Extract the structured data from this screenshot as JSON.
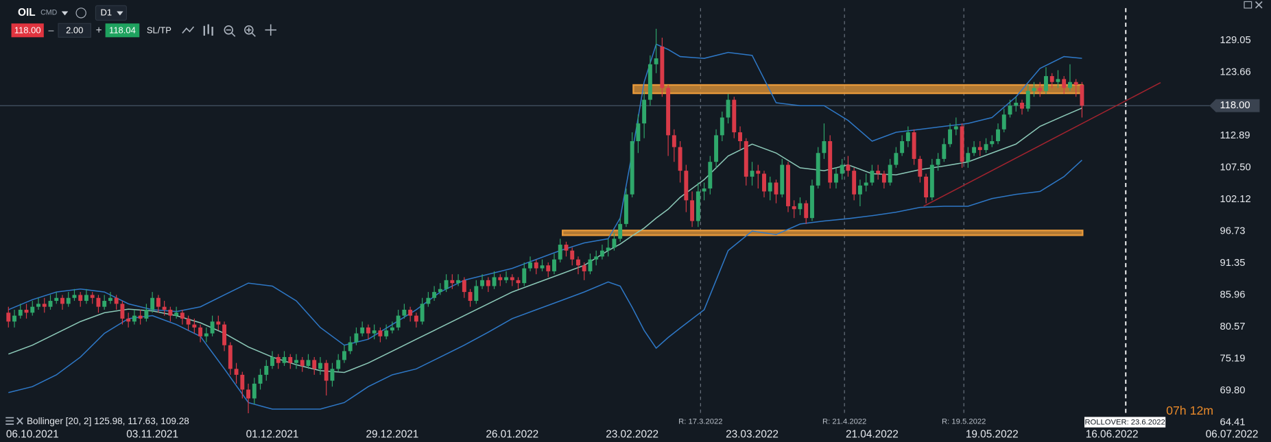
{
  "toolbar": {
    "symbol": "OIL",
    "market": "CMD",
    "timeframe": "D1",
    "sell": "118.00",
    "minus": "–",
    "volume": "2.00",
    "plus": "+",
    "buy": "118.04",
    "sltp": "SL/TP"
  },
  "chart_data": {
    "type": "candlestick",
    "up_color": "#2fa86b",
    "down_color": "#d93a48",
    "open": [
      83,
      81.5,
      82.5,
      83.5,
      83,
      84,
      84.5,
      84,
      85,
      85.5,
      84.5,
      85.5,
      86,
      85,
      86,
      85.5,
      84,
      85,
      85.5,
      84.5,
      82,
      81.5,
      82.5,
      82,
      83.5,
      85.5,
      84,
      83.5,
      82.5,
      83,
      82,
      81,
      80.5,
      79,
      79.5,
      81.5,
      81,
      77.5,
      73.5,
      72.5,
      70,
      68.5,
      71,
      72.5,
      74,
      75.5,
      74.5,
      75.5,
      74.5,
      75,
      74,
      75,
      73.5,
      74.5,
      71.5,
      73.5,
      75,
      76.5,
      78,
      79.5,
      80.5,
      79.5,
      80,
      79,
      80,
      80.5,
      82.5,
      83.5,
      82.5,
      81.5,
      84.5,
      85.5,
      86.5,
      87,
      88.5,
      88,
      88.5,
      86.5,
      85,
      87.5,
      88.5,
      87.5,
      89,
      88.5,
      89,
      88.5,
      88,
      90.5,
      91.5,
      90.5,
      91,
      90,
      92,
      94.5,
      93.5,
      92,
      91,
      90,
      92,
      92.5,
      93.5,
      94,
      95.5,
      98,
      103,
      112,
      115,
      119,
      125,
      128,
      121,
      113,
      111,
      107,
      102,
      98.5,
      103.5,
      104,
      108.5,
      113,
      116,
      119,
      113.5,
      112,
      106,
      107,
      106.5,
      103.5,
      105,
      103,
      108,
      101,
      100.5,
      101.5,
      99,
      104.5,
      110,
      112,
      105,
      106.5,
      108,
      107,
      103,
      104.5,
      105,
      107,
      106.5,
      105,
      108,
      110,
      112,
      113.5,
      109,
      106,
      102.5,
      108,
      109,
      111.5,
      114,
      114.5,
      108.5,
      110,
      111,
      110.5,
      111.5,
      112,
      114,
      116.5,
      118,
      118.5,
      117.5,
      120.5,
      121,
      120.5,
      123,
      122,
      122.5,
      121,
      122,
      121.5
    ],
    "high": [
      84,
      83.5,
      84.5,
      84.5,
      85,
      85.5,
      85.5,
      86,
      86.5,
      86,
      86.5,
      87,
      86.5,
      87,
      86.5,
      86,
      86,
      86.5,
      86,
      85,
      83,
      83.5,
      83.5,
      84.5,
      86.5,
      86,
      85,
      84,
      84,
      83.5,
      82.5,
      82,
      81,
      80.5,
      82.5,
      82.5,
      81.5,
      78,
      74.5,
      73,
      71,
      72,
      73.5,
      75,
      76.5,
      76,
      76.5,
      76,
      76,
      75.5,
      76,
      75.5,
      75.5,
      75,
      74.5,
      76,
      77.5,
      79,
      80.5,
      81.5,
      81,
      81,
      80.5,
      81,
      81.5,
      83.5,
      84.5,
      84,
      83,
      85.5,
      86.5,
      87.5,
      88,
      89.5,
      89.5,
      89.5,
      89,
      87,
      88.5,
      89.5,
      89,
      90,
      89.5,
      90,
      89.5,
      89,
      91.5,
      92.5,
      92,
      92,
      91.5,
      93,
      95.5,
      95,
      94,
      92.5,
      91.5,
      93,
      93.5,
      94.5,
      95.5,
      96.5,
      99,
      104,
      113.5,
      116.5,
      120.5,
      126.5,
      131,
      129.5,
      121.5,
      114,
      112,
      108,
      103.5,
      105,
      105,
      109.5,
      114,
      117,
      120,
      119.5,
      114.5,
      112.5,
      108.5,
      108,
      107,
      106,
      105.5,
      109,
      108.5,
      102,
      102.5,
      102,
      105.5,
      111,
      115,
      113,
      107.5,
      109,
      109.5,
      107.5,
      105.5,
      106.5,
      108,
      108,
      107,
      109,
      111,
      113,
      114.5,
      114,
      109.5,
      106.5,
      109,
      110,
      112.5,
      115,
      116,
      115,
      111,
      112,
      112,
      112.5,
      113,
      115,
      117.5,
      119,
      119.5,
      119,
      121.5,
      122,
      122,
      124.5,
      123.5,
      124,
      123,
      125,
      122.5,
      122
    ],
    "low": [
      80.5,
      80.5,
      82,
      82,
      82.5,
      83.5,
      83,
      83.5,
      84.5,
      83.5,
      84,
      85,
      84,
      84.5,
      84.5,
      83,
      83.5,
      84.5,
      83.5,
      81,
      80.5,
      81,
      81,
      81.5,
      83,
      83,
      82.5,
      81.5,
      82,
      81,
      80,
      79.5,
      78,
      78,
      79,
      80,
      76.5,
      72.5,
      71,
      68.5,
      66,
      67.5,
      70,
      71.5,
      73.5,
      73.5,
      74,
      73.5,
      73.5,
      73,
      73.5,
      72.5,
      72.5,
      69,
      70.5,
      73,
      74.5,
      76,
      77.5,
      79,
      78.5,
      78.5,
      78,
      78.5,
      79.5,
      80,
      82,
      81.5,
      80.5,
      81,
      84,
      85,
      86,
      86.5,
      87,
      87.5,
      85.5,
      84,
      84.5,
      87,
      86.5,
      87,
      87.5,
      88,
      87.5,
      87,
      87.5,
      90,
      89.5,
      90,
      89,
      89.5,
      91.5,
      92.5,
      91,
      89.5,
      88.5,
      89.5,
      91,
      92,
      92.5,
      93.5,
      95,
      97.5,
      102.5,
      110,
      112.5,
      118,
      123.5,
      119.5,
      109.5,
      108.5,
      105,
      100,
      97.5,
      97.5,
      102,
      103,
      107.5,
      112,
      115,
      112.5,
      110.5,
      104.5,
      104.5,
      104,
      102.5,
      102,
      101.5,
      102.5,
      100,
      99,
      99.5,
      98,
      98.5,
      104,
      109,
      104,
      104,
      105.5,
      106,
      102,
      101,
      103.5,
      104.5,
      105.5,
      104,
      104.5,
      107.5,
      109.5,
      111,
      108,
      105,
      101.5,
      102,
      107,
      108.5,
      111,
      113,
      107.5,
      107.5,
      109.5,
      109.5,
      110,
      111,
      111.5,
      113.5,
      116,
      117,
      116.5,
      117,
      119.5,
      119.5,
      120,
      121,
      121,
      120,
      120.5,
      119.5,
      116
    ],
    "close": [
      81.5,
      82.5,
      83.5,
      83,
      84,
      84.5,
      84,
      85,
      85.5,
      84.5,
      85.5,
      86,
      85,
      86,
      85.5,
      84,
      85,
      85.5,
      84.5,
      82,
      81.5,
      82.5,
      82,
      83.5,
      85.5,
      84,
      83.5,
      82.5,
      83,
      82,
      81,
      80.5,
      79,
      79.5,
      81.5,
      81,
      77.5,
      73.5,
      72.5,
      70,
      68.5,
      71,
      72.5,
      74,
      75.5,
      74.5,
      75.5,
      74.5,
      75,
      74,
      75,
      73.5,
      74.5,
      71.5,
      73.5,
      75,
      76.5,
      78,
      79.5,
      80.5,
      79.5,
      80,
      79,
      80,
      80.5,
      82.5,
      83.5,
      82.5,
      81.5,
      84.5,
      85.5,
      86.5,
      87,
      88.5,
      88,
      88.5,
      86.5,
      85,
      87.5,
      88.5,
      87.5,
      89,
      88.5,
      89,
      88.5,
      88,
      90.5,
      91.5,
      90.5,
      91,
      90,
      92,
      94.5,
      93.5,
      92,
      91,
      90,
      92,
      92.5,
      93.5,
      94,
      95.5,
      98,
      103,
      112,
      115,
      119,
      125,
      126,
      121,
      113,
      111,
      107,
      102,
      98.5,
      103.5,
      104,
      108.5,
      113,
      116,
      119,
      113.5,
      112,
      106,
      107,
      106.5,
      103.5,
      105,
      103,
      108,
      101,
      100.5,
      101.5,
      99,
      104.5,
      110,
      112,
      105,
      106.5,
      108,
      107,
      103,
      104.5,
      105,
      107,
      106.5,
      105,
      108,
      110,
      112,
      113.5,
      109,
      106,
      102.5,
      108,
      109,
      111.5,
      114,
      114.5,
      108.5,
      110,
      111,
      110.5,
      111.5,
      112,
      114,
      116.5,
      118,
      118.5,
      117.5,
      120.5,
      121,
      120.5,
      123,
      122,
      122.5,
      121,
      122,
      121.5,
      118
    ],
    "xlim": [
      -1,
      201
    ],
    "ylim": [
      63.6,
      134.5
    ],
    "grid": true,
    "xticks": [
      {
        "value": 4,
        "label": "06.10.2021"
      },
      {
        "value": 24,
        "label": "03.11.2021"
      },
      {
        "value": 44,
        "label": "01.12.2021"
      },
      {
        "value": 64,
        "label": "29.12.2021"
      },
      {
        "value": 84,
        "label": "26.01.2022"
      },
      {
        "value": 104,
        "label": "23.02.2022"
      },
      {
        "value": 124,
        "label": "23.03.2022"
      },
      {
        "value": 144,
        "label": "21.04.2022"
      },
      {
        "value": 164,
        "label": "19.05.2022"
      },
      {
        "value": 184,
        "label": "16.06.2022"
      },
      {
        "value": 204,
        "label": "06.07.2022"
      }
    ],
    "yticks": [
      129.05,
      123.66,
      112.89,
      {
        "value": 107.5,
        "label": "107.50"
      },
      102.12,
      96.73,
      91.35,
      85.96,
      80.57,
      75.19,
      {
        "value": 69.8,
        "label": "69.80"
      },
      64.41
    ],
    "bollinger": {
      "label": "Bollinger [20, 2] 125.98, 117.63, 109.28",
      "band_color": "#2e78c7",
      "middle_color": "#8cc9b8",
      "x": [
        0,
        4,
        8,
        12,
        16,
        20,
        24,
        28,
        32,
        36,
        40,
        44,
        48,
        52,
        56,
        60,
        64,
        68,
        72,
        76,
        80,
        84,
        88,
        92,
        96,
        100,
        102,
        104,
        106,
        108,
        110,
        112,
        116,
        120,
        124,
        128,
        132,
        136,
        140,
        144,
        148,
        152,
        156,
        160,
        164,
        168,
        172,
        176,
        179
      ],
      "upper": [
        83.5,
        85.2,
        86.5,
        87,
        86.5,
        84.5,
        83.5,
        83.2,
        84,
        86,
        88,
        87.5,
        85,
        80.5,
        77.5,
        78.5,
        81,
        83.5,
        86.5,
        88.5,
        89.5,
        90.5,
        92,
        93.5,
        94.8,
        95.5,
        99,
        110,
        122,
        128.4,
        127.5,
        126.3,
        126,
        127,
        126.5,
        118.5,
        118,
        118,
        115.5,
        112,
        113.5,
        114,
        114.5,
        115,
        116,
        119.5,
        124.3,
        126.3,
        126
      ],
      "middle": [
        76,
        77.5,
        79.5,
        81.5,
        83,
        83.6,
        83.3,
        82.5,
        81.3,
        79.5,
        77.2,
        75.5,
        74.2,
        73.2,
        72.9,
        74.5,
        76.5,
        78.5,
        80.5,
        82.5,
        84.5,
        86.5,
        88,
        89.5,
        91,
        93.5,
        94.6,
        96,
        97.3,
        99,
        100.5,
        102.5,
        105.5,
        109.5,
        111.5,
        110,
        107.5,
        107,
        108,
        106.5,
        106.3,
        107.2,
        107.8,
        108.5,
        110,
        111.5,
        114.5,
        116.3,
        117.6
      ],
      "lower": [
        69.5,
        70.5,
        72.5,
        75.5,
        79.5,
        82,
        82.5,
        81,
        79,
        73.5,
        67.8,
        66.7,
        66.7,
        66.7,
        67.8,
        70.5,
        72.5,
        73.5,
        75.5,
        77.5,
        79.7,
        82,
        83.5,
        85,
        86.5,
        88.2,
        87.5,
        83.9,
        80,
        77,
        78.8,
        80.4,
        83.5,
        93.5,
        96.8,
        96.2,
        98,
        98.5,
        98.9,
        99.4,
        100,
        100.8,
        101,
        101,
        102.3,
        103,
        103.5,
        106,
        108.8
      ]
    },
    "zone_color": "#e8993a",
    "zones": [
      {
        "from": 104.2,
        "to": 179.1,
        "top": 121.5,
        "bottom": 120.1
      },
      {
        "from": 92.4,
        "to": 179.1,
        "top": 96.9,
        "bottom": 96.1
      }
    ],
    "trendline": {
      "color": "#a3232e",
      "x": [
        152.6,
        192.1
      ],
      "y": [
        101,
        121.9
      ]
    },
    "current_price": {
      "value": 118,
      "label": "118.00"
    },
    "rollovers": [
      {
        "x": 115.4,
        "label": "R: 17.3.2022"
      },
      {
        "x": 139.4,
        "label": "R: 21.4.2022"
      },
      {
        "x": 159.3,
        "label": "R: 19.5.2022"
      }
    ],
    "next_rollover": {
      "x": 186.3,
      "label": "ROLLOVER: 23.6.2022"
    },
    "countdown": "07h 12m"
  }
}
